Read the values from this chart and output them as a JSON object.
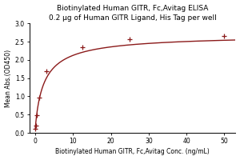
{
  "title": "Biotinylated Human GITR, Fc,Avitag ELISA",
  "subtitle": "0.2 μg of Human GITR Ligand, His Tag per well",
  "xlabel": "Biotinylated Human GITR, Fc,Avitag Conc. (ng/mL)",
  "ylabel": "Mean Abs.(OD450)",
  "x_data": [
    0.0,
    0.1,
    0.39,
    1.0,
    3.0,
    12.5,
    25.0,
    50.0
  ],
  "y_data": [
    0.12,
    0.19,
    0.48,
    0.97,
    1.68,
    2.35,
    2.56,
    2.65
  ],
  "xlim": [
    -1.5,
    53
  ],
  "ylim": [
    0.0,
    3.0
  ],
  "yticks": [
    0.0,
    0.5,
    1.0,
    1.5,
    2.0,
    2.5,
    3.0
  ],
  "xticks": [
    0,
    10,
    20,
    30,
    40,
    50
  ],
  "line_color": "#8B1A1A",
  "marker_color": "#8B1A1A",
  "marker": "+",
  "background_color": "#ffffff",
  "title_fontsize": 6.5,
  "subtitle_fontsize": 5.5,
  "label_fontsize": 5.5,
  "tick_fontsize": 5.5
}
